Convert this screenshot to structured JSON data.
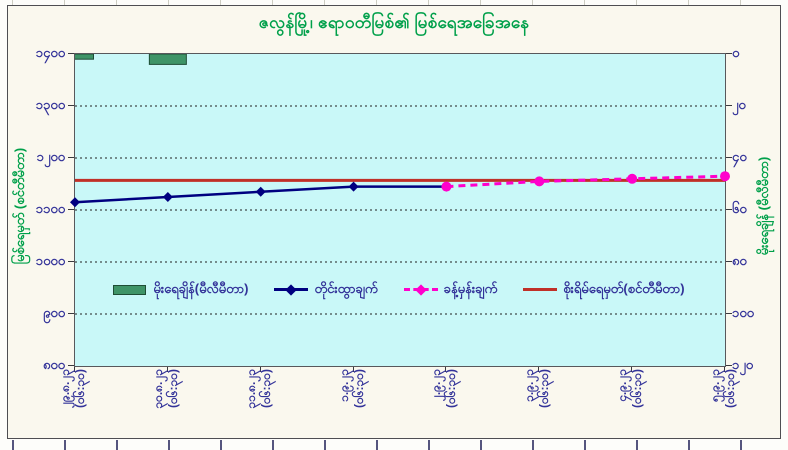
{
  "chart": {
    "title": "ဇလွန်မြို့၊ ဧရာဝတီမြစ်၏ မြစ်ရေအခြေအနေ",
    "left_axis": {
      "title": "မြစ်ရေမှတ် (စင်တီမီတာ)",
      "tick_labels": [
        "၁၄၀၀",
        "၁၃၀၀",
        "၁၂၀၀",
        "၁၁၀၀",
        "၁၀၀၀",
        "၉၀၀",
        "၈၀၀"
      ]
    },
    "right_axis": {
      "title": "မိုးရေချိန် (မီလီမီတာ)",
      "tick_labels": [
        "၀",
        "၂၀",
        "၄၀",
        "၆၀",
        "၈၀",
        "၁၀၀",
        "၁၂၀"
      ]
    },
    "colors": {
      "title_green": "#00A04A",
      "axis_text_navy": "#333399",
      "plot_background": "#C9F8F8",
      "chart_background": "#FAF8EE"
    }
  },
  "chart_data": {
    "type": "combo-bar-line",
    "categories": [
      {
        "date": "၂၉.၈.၂၃",
        "time": "(၀၆:၃၀)"
      },
      {
        "date": "၃၀.၈.၂၃",
        "time": "(၀၆:၃၀)"
      },
      {
        "date": "၃၁.၈.၂၃",
        "time": "(၀၆:၃၀)"
      },
      {
        "date": "၁.၉.၂၃",
        "time": "(၀၆:၃၀)"
      },
      {
        "date": "၂.၉.၂၃",
        "time": "(၀၆:၃၀)"
      },
      {
        "date": "၃.၉.၂၃",
        "time": "(၀၆:၃၀)"
      },
      {
        "date": "၄.၉.၂၃",
        "time": "(၀၆:၃၀)"
      },
      {
        "date": "၅.၉.၂၃",
        "time": "(၀၆:၃၀)"
      }
    ],
    "left_axis": {
      "label": "မြစ်ရေမှတ် (စင်တီမီတာ)",
      "min": 800,
      "max": 1400,
      "tick_step": 100
    },
    "right_axis": {
      "label": "မိုးရေချိန် (မီလီမီတာ)",
      "min": 0,
      "max": 120,
      "tick_step": 20,
      "inverted": true
    },
    "series": [
      {
        "name": "မိုးရေချိန်(မီလီမီတာ)",
        "type": "bar",
        "axis": "right",
        "color": "#3E9467",
        "values": [
          2,
          4,
          null,
          null,
          null,
          null,
          null,
          null
        ]
      },
      {
        "name": "တိုင်းထွာချက်",
        "type": "line",
        "axis": "left",
        "color": "#000080",
        "marker": "diamond",
        "values": [
          1115,
          1125,
          1135,
          1145,
          1145,
          null,
          null,
          null
        ]
      },
      {
        "name": "ခန့်မှန်းချက်",
        "type": "line",
        "style": "dashed",
        "axis": "left",
        "color": "#FF00CC",
        "marker": "circle",
        "values": [
          null,
          null,
          null,
          null,
          1145,
          1155,
          1160,
          1165
        ]
      },
      {
        "name": "စိုးရိမ်ရေမှတ်(စင်တီမီတာ)",
        "type": "line",
        "axis": "left",
        "color": "#C03028",
        "marker": "none",
        "values": [
          1157,
          1157,
          1157,
          1157,
          1157,
          1157,
          1157,
          1157
        ]
      }
    ],
    "legend_position": "inside-plot-bottom-center",
    "grid": "horizontal-dashed"
  }
}
